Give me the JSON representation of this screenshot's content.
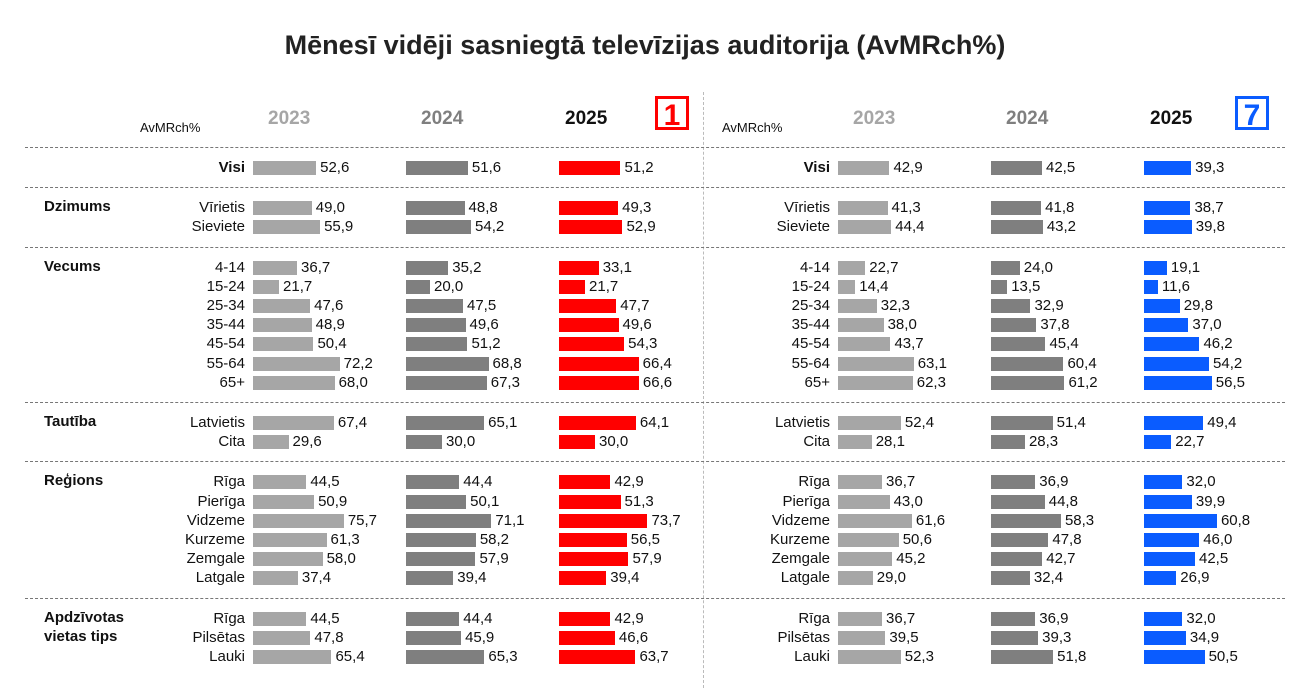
{
  "title": "Mēnesī vidēji sasniegtā televīzijas auditorija (AvMRch%)",
  "chart_data": [
    {
      "type": "bar",
      "unit_label": "AvMRch%",
      "logo": "1",
      "logo_color": "#ff0000",
      "groups": [
        {
          "categories": [
            "Visi"
          ]
        },
        {
          "name": "Dzimums",
          "categories": [
            "Vīrietis",
            "Sieviete"
          ]
        },
        {
          "name": "Vecums",
          "categories": [
            "4-14",
            "15-24",
            "25-34",
            "35-44",
            "45-54",
            "55-64",
            "65+"
          ]
        },
        {
          "name": "Tautība",
          "categories": [
            "Latvietis",
            "Cita"
          ]
        },
        {
          "name": "Reģions",
          "categories": [
            "Rīga",
            "Pierīga",
            "Vidzeme",
            "Kurzeme",
            "Zemgale",
            "Latgale"
          ]
        },
        {
          "name": "Apdzīvotas vietas tips",
          "categories": [
            "Rīga",
            "Pilsētas",
            "Lauki"
          ]
        }
      ],
      "series": [
        {
          "name": "2023",
          "color": "#a6a6a6",
          "values": [
            52.6,
            49.0,
            55.9,
            36.7,
            21.7,
            47.6,
            48.9,
            50.4,
            72.2,
            68.0,
            67.4,
            29.6,
            44.5,
            50.9,
            75.7,
            61.3,
            58.0,
            37.4,
            44.5,
            47.8,
            65.4
          ],
          "value_labels": [
            "52,6",
            "49,0",
            "55,9",
            "36,7",
            "21,7",
            "47,6",
            "48,9",
            "50,4",
            "72,2",
            "68,0",
            "67,4",
            "29,6",
            "44,5",
            "50,9",
            "75,7",
            "61,3",
            "58,0",
            "37,4",
            "44,5",
            "47,8",
            "65,4"
          ]
        },
        {
          "name": "2024",
          "color": "#7f7f7f",
          "values": [
            51.6,
            48.8,
            54.2,
            35.2,
            20.0,
            47.5,
            49.6,
            51.2,
            68.8,
            67.3,
            65.1,
            30.0,
            44.4,
            50.1,
            71.1,
            58.2,
            57.9,
            39.4,
            44.4,
            45.9,
            65.3
          ],
          "value_labels": [
            "51,6",
            "48,8",
            "54,2",
            "35,2",
            "20,0",
            "47,5",
            "49,6",
            "51,2",
            "68,8",
            "67,3",
            "65,1",
            "30,0",
            "44,4",
            "50,1",
            "71,1",
            "58,2",
            "57,9",
            "39,4",
            "44,4",
            "45,9",
            "65,3"
          ]
        },
        {
          "name": "2025",
          "color": "#ff0000",
          "values": [
            51.2,
            49.3,
            52.9,
            33.1,
            21.7,
            47.7,
            49.6,
            54.3,
            66.4,
            66.6,
            64.1,
            30.0,
            42.9,
            51.3,
            73.7,
            56.5,
            57.9,
            39.4,
            42.9,
            46.6,
            63.7
          ],
          "value_labels": [
            "51,2",
            "49,3",
            "52,9",
            "33,1",
            "21,7",
            "47,7",
            "49,6",
            "54,3",
            "66,4",
            "66,6",
            "64,1",
            "30,0",
            "42,9",
            "51,3",
            "73,7",
            "56,5",
            "57,9",
            "39,4",
            "42,9",
            "46,6",
            "63,7"
          ]
        }
      ]
    },
    {
      "type": "bar",
      "unit_label": "AvMRch%",
      "logo": "7",
      "logo_color": "#0a5cff",
      "groups": [
        {
          "categories": [
            "Visi"
          ]
        },
        {
          "categories": [
            "Vīrietis",
            "Sieviete"
          ]
        },
        {
          "categories": [
            "4-14",
            "15-24",
            "25-34",
            "35-44",
            "45-54",
            "55-64",
            "65+"
          ]
        },
        {
          "categories": [
            "Latvietis",
            "Cita"
          ]
        },
        {
          "categories": [
            "Rīga",
            "Pierīga",
            "Vidzeme",
            "Kurzeme",
            "Zemgale",
            "Latgale"
          ]
        },
        {
          "categories": [
            "Rīga",
            "Pilsētas",
            "Lauki"
          ]
        }
      ],
      "series": [
        {
          "name": "2023",
          "color": "#a6a6a6",
          "values": [
            42.9,
            41.3,
            44.4,
            22.7,
            14.4,
            32.3,
            38.0,
            43.7,
            63.1,
            62.3,
            52.4,
            28.1,
            36.7,
            43.0,
            61.6,
            50.6,
            45.2,
            29.0,
            36.7,
            39.5,
            52.3
          ],
          "value_labels": [
            "42,9",
            "41,3",
            "44,4",
            "22,7",
            "14,4",
            "32,3",
            "38,0",
            "43,7",
            "63,1",
            "62,3",
            "52,4",
            "28,1",
            "36,7",
            "43,0",
            "61,6",
            "50,6",
            "45,2",
            "29,0",
            "36,7",
            "39,5",
            "52,3"
          ]
        },
        {
          "name": "2024",
          "color": "#7f7f7f",
          "values": [
            42.5,
            41.8,
            43.2,
            24.0,
            13.5,
            32.9,
            37.8,
            45.4,
            60.4,
            61.2,
            51.4,
            28.3,
            36.9,
            44.8,
            58.3,
            47.8,
            42.7,
            32.4,
            36.9,
            39.3,
            51.8
          ],
          "value_labels": [
            "42,5",
            "41,8",
            "43,2",
            "24,0",
            "13,5",
            "32,9",
            "37,8",
            "45,4",
            "60,4",
            "61,2",
            "51,4",
            "28,3",
            "36,9",
            "44,8",
            "58,3",
            "47,8",
            "42,7",
            "32,4",
            "36,9",
            "39,3",
            "51,8"
          ]
        },
        {
          "name": "2025",
          "color": "#0a5cff",
          "values": [
            39.3,
            38.7,
            39.8,
            19.1,
            11.6,
            29.8,
            37.0,
            46.2,
            54.2,
            56.5,
            49.4,
            22.7,
            32.0,
            39.9,
            60.8,
            46.0,
            42.5,
            26.9,
            32.0,
            34.9,
            50.5
          ],
          "value_labels": [
            "39,3",
            "38,7",
            "39,8",
            "19,1",
            "11,6",
            "29,8",
            "37,0",
            "46,2",
            "54,2",
            "56,5",
            "49,4",
            "22,7",
            "32,0",
            "39,9",
            "60,8",
            "46,0",
            "42,5",
            "26,9",
            "32,0",
            "34,9",
            "50,5"
          ]
        }
      ]
    }
  ]
}
